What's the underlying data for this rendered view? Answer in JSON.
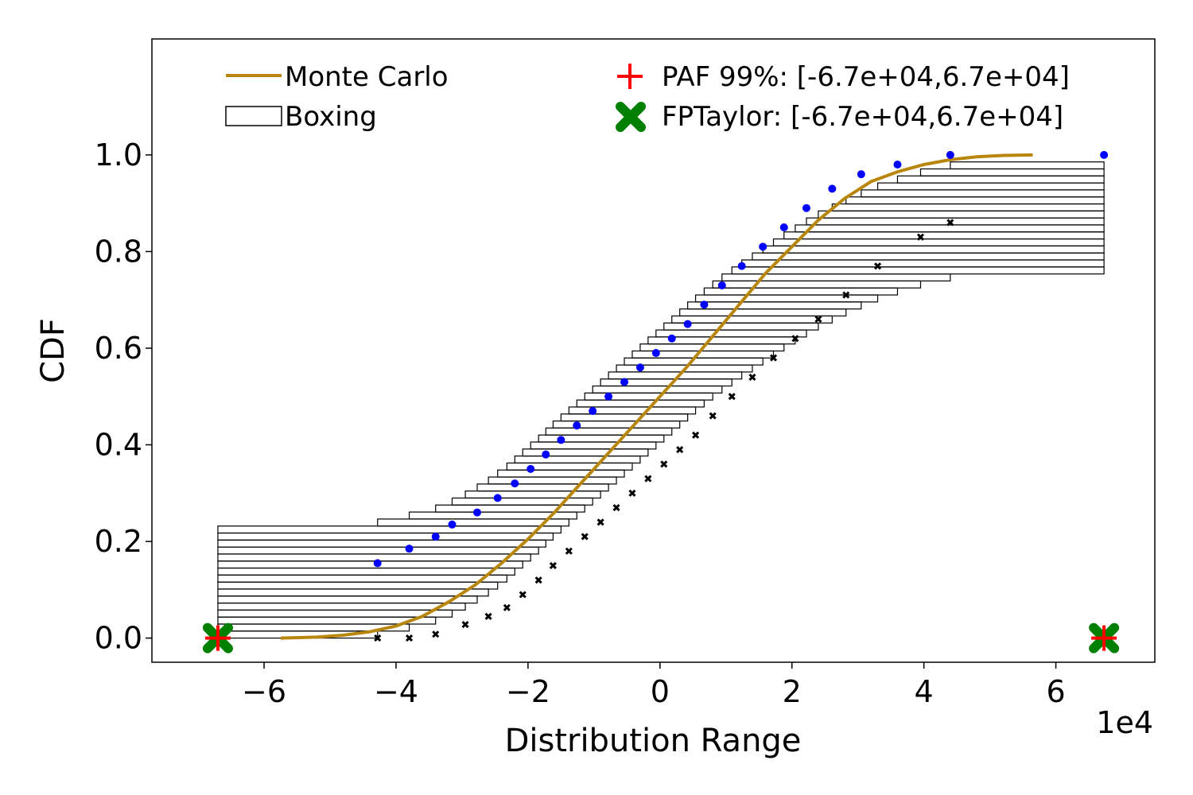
{
  "chart_data": {
    "type": "line",
    "xlabel": "Distribution Range",
    "ylabel": "CDF",
    "x_offset_label": "1e4",
    "xlim": [
      -77000,
      75000
    ],
    "ylim": [
      -0.05,
      1.24
    ],
    "xticks": [
      -60000,
      -40000,
      -20000,
      0,
      20000,
      40000,
      60000
    ],
    "xtick_labels": [
      "−6",
      "−4",
      "−2",
      "0",
      "2",
      "4",
      "6"
    ],
    "yticks": [
      0.0,
      0.2,
      0.4,
      0.6,
      0.8,
      1.0
    ],
    "ytick_labels": [
      "0.0",
      "0.2",
      "0.4",
      "0.6",
      "0.8",
      "1.0"
    ],
    "grid": false,
    "legend": {
      "placement": "top",
      "entries": [
        {
          "label": "Monte Carlo",
          "kind": "line",
          "color": "#b8860b"
        },
        {
          "label": "Boxing",
          "kind": "box",
          "color": "#000000"
        },
        {
          "label": "PAF 99%: [-6.7e+04,6.7e+04]",
          "kind": "plus",
          "color": "#ff0000"
        },
        {
          "label": "FPTaylor: [-6.7e+04,6.7e+04]",
          "kind": "x",
          "color": "#008000"
        }
      ]
    },
    "series": [
      {
        "name": "Monte Carlo",
        "color": "#b8860b",
        "x": [
          -57500,
          -52000,
          -48000,
          -44000,
          -40000,
          -36000,
          -32000,
          -28000,
          -24000,
          -20000,
          -16000,
          -12000,
          -8000,
          -4000,
          0,
          4000,
          8000,
          12000,
          16000,
          20000,
          24000,
          28000,
          32000,
          36000,
          40000,
          44000,
          48000,
          52000,
          56500
        ],
        "y": [
          0.0,
          0.002,
          0.006,
          0.013,
          0.025,
          0.045,
          0.075,
          0.11,
          0.155,
          0.205,
          0.26,
          0.32,
          0.38,
          0.44,
          0.5,
          0.56,
          0.625,
          0.69,
          0.755,
          0.81,
          0.865,
          0.91,
          0.945,
          0.965,
          0.98,
          0.99,
          0.996,
          0.999,
          1.0
        ]
      }
    ],
    "boxing": {
      "name": "Boxing",
      "lower_left": [
        -67000,
        -67000,
        -67000,
        -67000,
        -67000,
        -67000,
        -67000,
        -67000,
        -67000,
        -67000,
        -67000,
        -67000,
        -67000,
        -67000,
        -67000,
        -67000,
        -42800,
        -38000,
        -34000,
        -31500,
        -29500,
        -27700,
        -26000,
        -24600,
        -23200,
        -22000,
        -20800,
        -19600,
        -18400,
        -17300,
        -16200,
        -15000,
        -13800,
        -12600,
        -11400,
        -10200,
        -9000,
        -7800,
        -6600,
        -5400,
        -4200,
        -3000,
        -1800,
        -600,
        600,
        1800,
        3000,
        4200,
        5400,
        6700,
        8000,
        9400,
        10900,
        12400,
        14000,
        15600,
        17200,
        18800,
        20500,
        22200,
        24000,
        26100,
        28200,
        30500,
        33000,
        36000,
        39500,
        44000,
        67300
      ],
      "upper_right": [
        -42800,
        -38000,
        -34000,
        -31500,
        -29500,
        -27700,
        -26000,
        -24600,
        -23200,
        -22000,
        -20800,
        -19600,
        -18400,
        -17300,
        -16200,
        -15000,
        -13800,
        -12600,
        -11400,
        -10200,
        -9000,
        -7800,
        -6600,
        -5400,
        -4200,
        -3000,
        -1800,
        -600,
        600,
        1800,
        3000,
        4200,
        5400,
        6700,
        8000,
        9400,
        10900,
        12400,
        14000,
        15600,
        17200,
        18800,
        20500,
        22200,
        24000,
        26100,
        28200,
        30500,
        33000,
        36000,
        39500,
        44000,
        67300,
        67300,
        67300,
        67300,
        67300,
        67300,
        67300,
        67300,
        67300,
        67300,
        67300,
        67300,
        67300,
        67300,
        67300,
        67300,
        67300
      ],
      "lower_points_x": [
        -42800,
        -38000,
        -34000,
        -29500,
        -26000,
        -23200,
        -20800,
        -18400,
        -16200,
        -13800,
        -11400,
        -9000,
        -6600,
        -4200,
        -1800,
        600,
        3000,
        5400,
        8000,
        10900,
        14000,
        17200,
        20500,
        24000,
        28200,
        33000,
        39500,
        44000
      ],
      "lower_points_y": [
        0.0,
        0.0,
        0.008,
        0.028,
        0.045,
        0.063,
        0.09,
        0.12,
        0.15,
        0.18,
        0.21,
        0.24,
        0.27,
        0.3,
        0.33,
        0.36,
        0.39,
        0.42,
        0.46,
        0.5,
        0.54,
        0.58,
        0.62,
        0.66,
        0.71,
        0.77,
        0.83,
        0.86
      ],
      "upper_points_x": [
        -67000,
        -42800,
        -38000,
        -34000,
        -31500,
        -27700,
        -24600,
        -22000,
        -19600,
        -17300,
        -15000,
        -12600,
        -10200,
        -7800,
        -5400,
        -3000,
        -600,
        1800,
        4200,
        6700,
        9400,
        12400,
        15600,
        18800,
        22200,
        26100,
        30500,
        36000,
        44000,
        67300
      ],
      "upper_points_y": [
        0.0,
        0.155,
        0.185,
        0.21,
        0.235,
        0.26,
        0.29,
        0.32,
        0.35,
        0.38,
        0.41,
        0.44,
        0.47,
        0.5,
        0.53,
        0.56,
        0.59,
        0.62,
        0.65,
        0.69,
        0.73,
        0.77,
        0.81,
        0.85,
        0.89,
        0.93,
        0.96,
        0.98,
        1.0,
        1.0
      ]
    },
    "paf_markers": {
      "name": "PAF 99%",
      "x": [
        -67000,
        67300
      ],
      "y": [
        0.0,
        0.0
      ],
      "color": "#ff0000"
    },
    "fptaylor_markers": {
      "name": "FPTaylor",
      "x": [
        -67000,
        67300
      ],
      "y": [
        0.0,
        0.0
      ],
      "color": "#008000"
    }
  }
}
